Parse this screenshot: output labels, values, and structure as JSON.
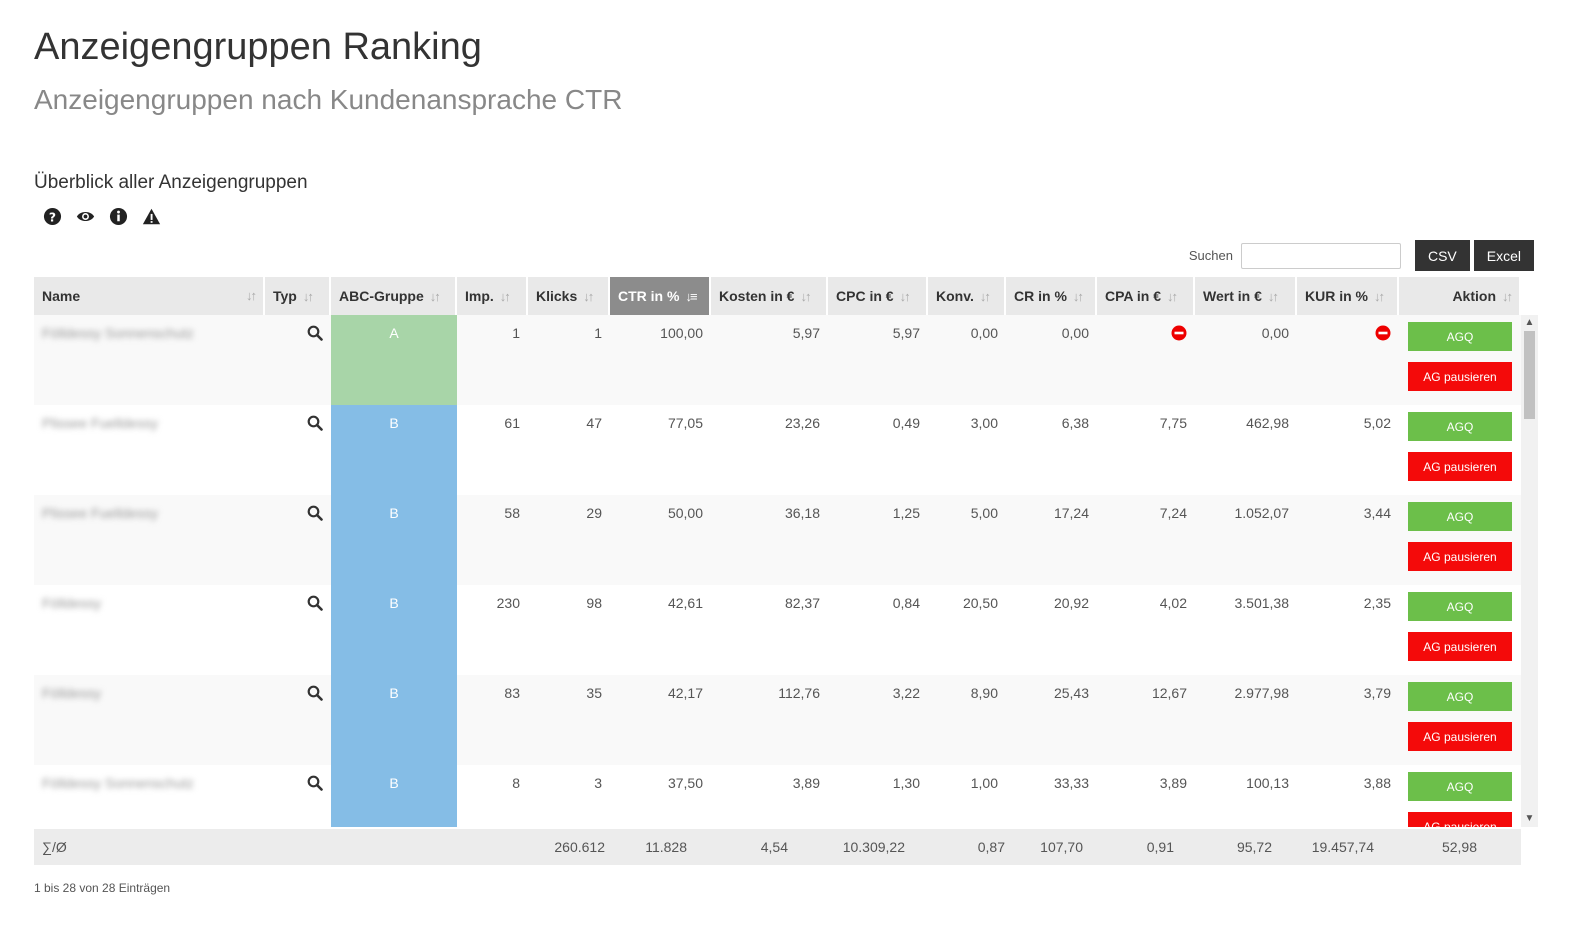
{
  "header": {
    "title": "Anzeigengruppen Ranking",
    "subtitle": "Anzeigengruppen nach Kundenansprache CTR"
  },
  "section": {
    "title": "Überblick aller Anzeigengruppen",
    "icons": [
      "question-circle-icon",
      "eye-icon",
      "info-circle-icon",
      "warning-icon"
    ]
  },
  "toolbar": {
    "search_label": "Suchen",
    "search_value": "",
    "csv_label": "CSV",
    "excel_label": "Excel"
  },
  "table": {
    "sorted_column": "CTR in %",
    "columns": [
      "Name",
      "Typ",
      "ABC-Gruppe",
      "Imp.",
      "Klicks",
      "CTR in %",
      "Kosten in €",
      "CPC in €",
      "Konv.",
      "CR in %",
      "CPA in €",
      "Wert in €",
      "KUR in %",
      "Aktion"
    ],
    "rows": [
      {
        "name": "Fölldessy Sonnenschutz",
        "abc": "A",
        "imp": "1",
        "klicks": "1",
        "ctr": "100,00",
        "kosten": "5,97",
        "cpc": "5,97",
        "konv": "0,00",
        "cr": "0,00",
        "cpa": "",
        "wert": "0,00",
        "kur": "",
        "cpa_icon": "stop-icon",
        "kur_icon": "stop-icon",
        "agq": "AGQ",
        "pause": "AG pausieren"
      },
      {
        "name": "Plissee Fuelldessy",
        "abc": "B",
        "imp": "61",
        "klicks": "47",
        "ctr": "77,05",
        "kosten": "23,26",
        "cpc": "0,49",
        "konv": "3,00",
        "cr": "6,38",
        "cpa": "7,75",
        "wert": "462,98",
        "kur": "5,02",
        "agq": "AGQ",
        "pause": "AG pausieren"
      },
      {
        "name": "Plissee Fuelldessy",
        "abc": "B",
        "imp": "58",
        "klicks": "29",
        "ctr": "50,00",
        "kosten": "36,18",
        "cpc": "1,25",
        "konv": "5,00",
        "cr": "17,24",
        "cpa": "7,24",
        "wert": "1.052,07",
        "kur": "3,44",
        "agq": "AGQ",
        "pause": "AG pausieren"
      },
      {
        "name": "Fölldessy",
        "abc": "B",
        "imp": "230",
        "klicks": "98",
        "ctr": "42,61",
        "kosten": "82,37",
        "cpc": "0,84",
        "konv": "20,50",
        "cr": "20,92",
        "cpa": "4,02",
        "wert": "3.501,38",
        "kur": "2,35",
        "agq": "AGQ",
        "pause": "AG pausieren"
      },
      {
        "name": "Fölldessy",
        "abc": "B",
        "imp": "83",
        "klicks": "35",
        "ctr": "42,17",
        "kosten": "112,76",
        "cpc": "3,22",
        "konv": "8,90",
        "cr": "25,43",
        "cpa": "12,67",
        "wert": "2.977,98",
        "kur": "3,79",
        "agq": "AGQ",
        "pause": "AG pausieren"
      },
      {
        "name": "Fölldessy Sonnenschutz",
        "abc": "B",
        "imp": "8",
        "klicks": "3",
        "ctr": "37,50",
        "kosten": "3,89",
        "cpc": "1,30",
        "konv": "1,00",
        "cr": "33,33",
        "cpa": "3,89",
        "wert": "100,13",
        "kur": "3,88",
        "agq": "AGQ",
        "pause": "AG pausieren"
      }
    ],
    "footer": {
      "label": "∑/Ø",
      "imp": "260.612",
      "klicks": "11.828",
      "ctr": "4,54",
      "kosten": "10.309,22",
      "cpc": "0,87",
      "konv": "107,70",
      "cr": "0,91",
      "cpa": "95,72",
      "wert": "19.457,74",
      "kur": "52,98"
    },
    "info": "1 bis 28 von 28 Einträgen"
  },
  "colors": {
    "abc_a": "#a8d5a8",
    "abc_b": "#85bde6",
    "agq_button": "#6cbf4a",
    "pause_button": "#f40a0a",
    "sorted_header": "#8c8c8c"
  }
}
